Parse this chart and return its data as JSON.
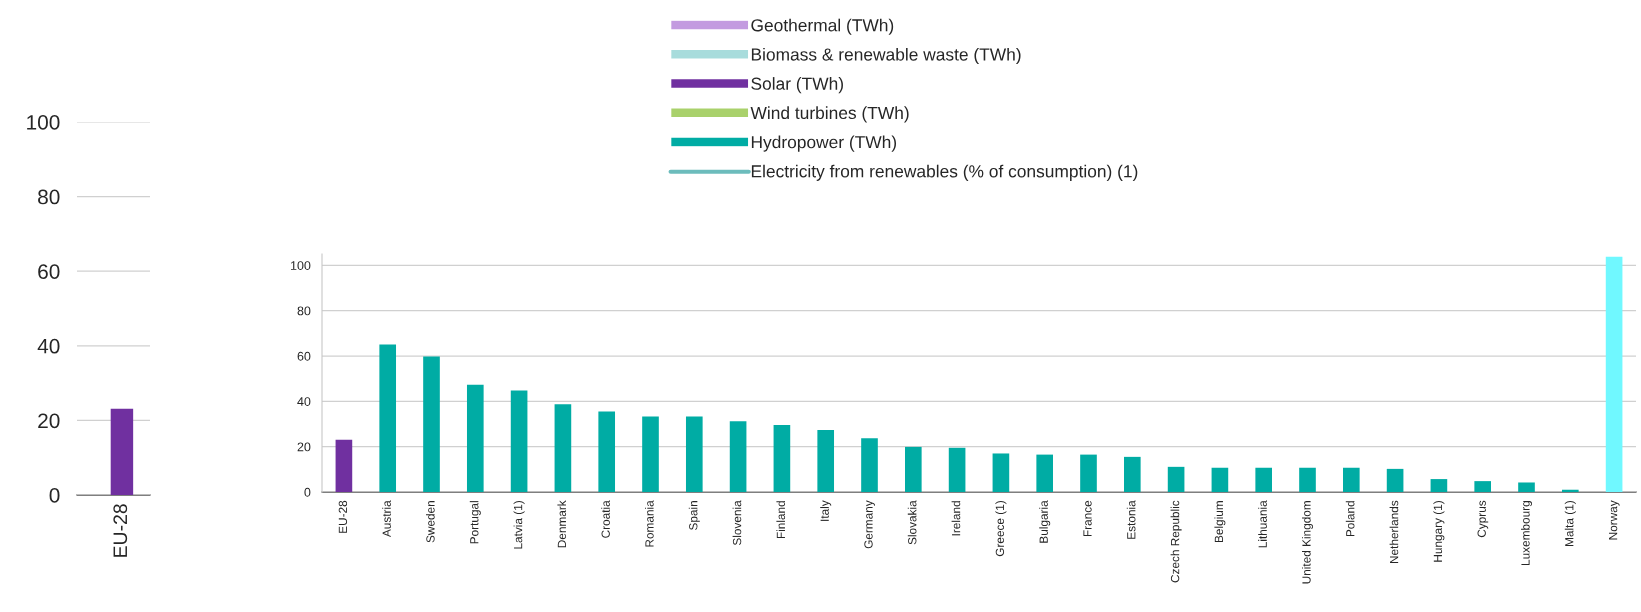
{
  "chart_data": [
    {
      "type": "bar",
      "categories": [
        "EU-28"
      ],
      "values": [
        23.1
      ],
      "colors": [
        "#7030a0"
      ],
      "ylim": [
        0,
        100
      ],
      "yticks": [
        0,
        20,
        40,
        60,
        80,
        100
      ],
      "grid": "y"
    },
    {
      "type": "bar",
      "legend": "top",
      "grid": "y",
      "ylim": [
        0,
        105
      ],
      "yticks": [
        0,
        20,
        40,
        60,
        80,
        100
      ],
      "categories": [
        "EU-28",
        "Austria",
        "Sweden",
        "Portugal",
        "Latvia (1)",
        "Denmark",
        "Croatia",
        "Romania",
        "Spain",
        "Slovenia",
        "Finland",
        "Italy",
        "Germany",
        "Slovakia",
        "Ireland",
        "Greece (1)",
        "Bulgaria",
        "France",
        "Estonia",
        "Czech Republic",
        "Belgium",
        "Lithuania",
        "United Kingdom",
        "Poland",
        "Netherlands",
        "Hungary (1)",
        "Cyprus",
        "Luxembourg",
        "Malta (1)",
        "Norway"
      ],
      "series": [
        {
          "name": "Geothermal (TWh)",
          "color": "#c39be0",
          "values": [
            null,
            null,
            null,
            null,
            null,
            null,
            null,
            null,
            null,
            null,
            null,
            null,
            null,
            null,
            null,
            null,
            null,
            null,
            null,
            null,
            null,
            null,
            null,
            null,
            null,
            null,
            null,
            null,
            null,
            null
          ]
        },
        {
          "name": "Biomass & renewable waste (TWh)",
          "color": "#a8dcdc",
          "values": [
            null,
            null,
            null,
            null,
            null,
            null,
            null,
            null,
            null,
            null,
            null,
            null,
            null,
            null,
            null,
            null,
            null,
            null,
            null,
            null,
            null,
            null,
            null,
            null,
            null,
            null,
            null,
            null,
            null,
            null
          ]
        },
        {
          "name": "Solar (TWh)",
          "color": "#7030a0",
          "values": [
            23.1,
            null,
            null,
            null,
            null,
            null,
            null,
            null,
            null,
            null,
            null,
            null,
            null,
            null,
            null,
            null,
            null,
            null,
            null,
            null,
            null,
            null,
            null,
            null,
            null,
            null,
            null,
            null,
            null,
            null
          ]
        },
        {
          "name": "Wind turbines (TWh)",
          "color": "#a9d16b",
          "values": [
            null,
            null,
            null,
            null,
            null,
            null,
            null,
            null,
            null,
            null,
            null,
            null,
            null,
            null,
            null,
            null,
            null,
            null,
            null,
            null,
            null,
            null,
            null,
            null,
            null,
            null,
            null,
            null,
            null,
            null
          ]
        },
        {
          "name": "Hydropower (TWh)",
          "color": "#00aca4",
          "values": [
            null,
            65.1,
            59.8,
            47.3,
            44.8,
            38.7,
            35.5,
            33.3,
            33.3,
            31.2,
            29.6,
            27.4,
            23.7,
            19.9,
            19.5,
            17.0,
            16.5,
            16.5,
            15.5,
            11.1,
            10.7,
            10.7,
            10.7,
            10.7,
            10.2,
            5.7,
            4.8,
            4.2,
            1.0,
            null
          ]
        },
        {
          "name": "Electricity from renewables (% of consumption) (1)",
          "type": "line",
          "color": "#6cbcbc",
          "values": [
            null,
            null,
            null,
            null,
            null,
            null,
            null,
            null,
            null,
            null,
            null,
            null,
            null,
            null,
            null,
            null,
            null,
            null,
            null,
            null,
            null,
            null,
            null,
            null,
            null,
            null,
            null,
            null,
            null,
            null
          ]
        },
        {
          "color": "#70f8ff",
          "values": [
            null,
            null,
            null,
            null,
            null,
            null,
            null,
            null,
            null,
            null,
            null,
            null,
            null,
            null,
            null,
            null,
            null,
            null,
            null,
            null,
            null,
            null,
            null,
            null,
            null,
            null,
            null,
            null,
            null,
            103.8
          ]
        }
      ]
    }
  ]
}
